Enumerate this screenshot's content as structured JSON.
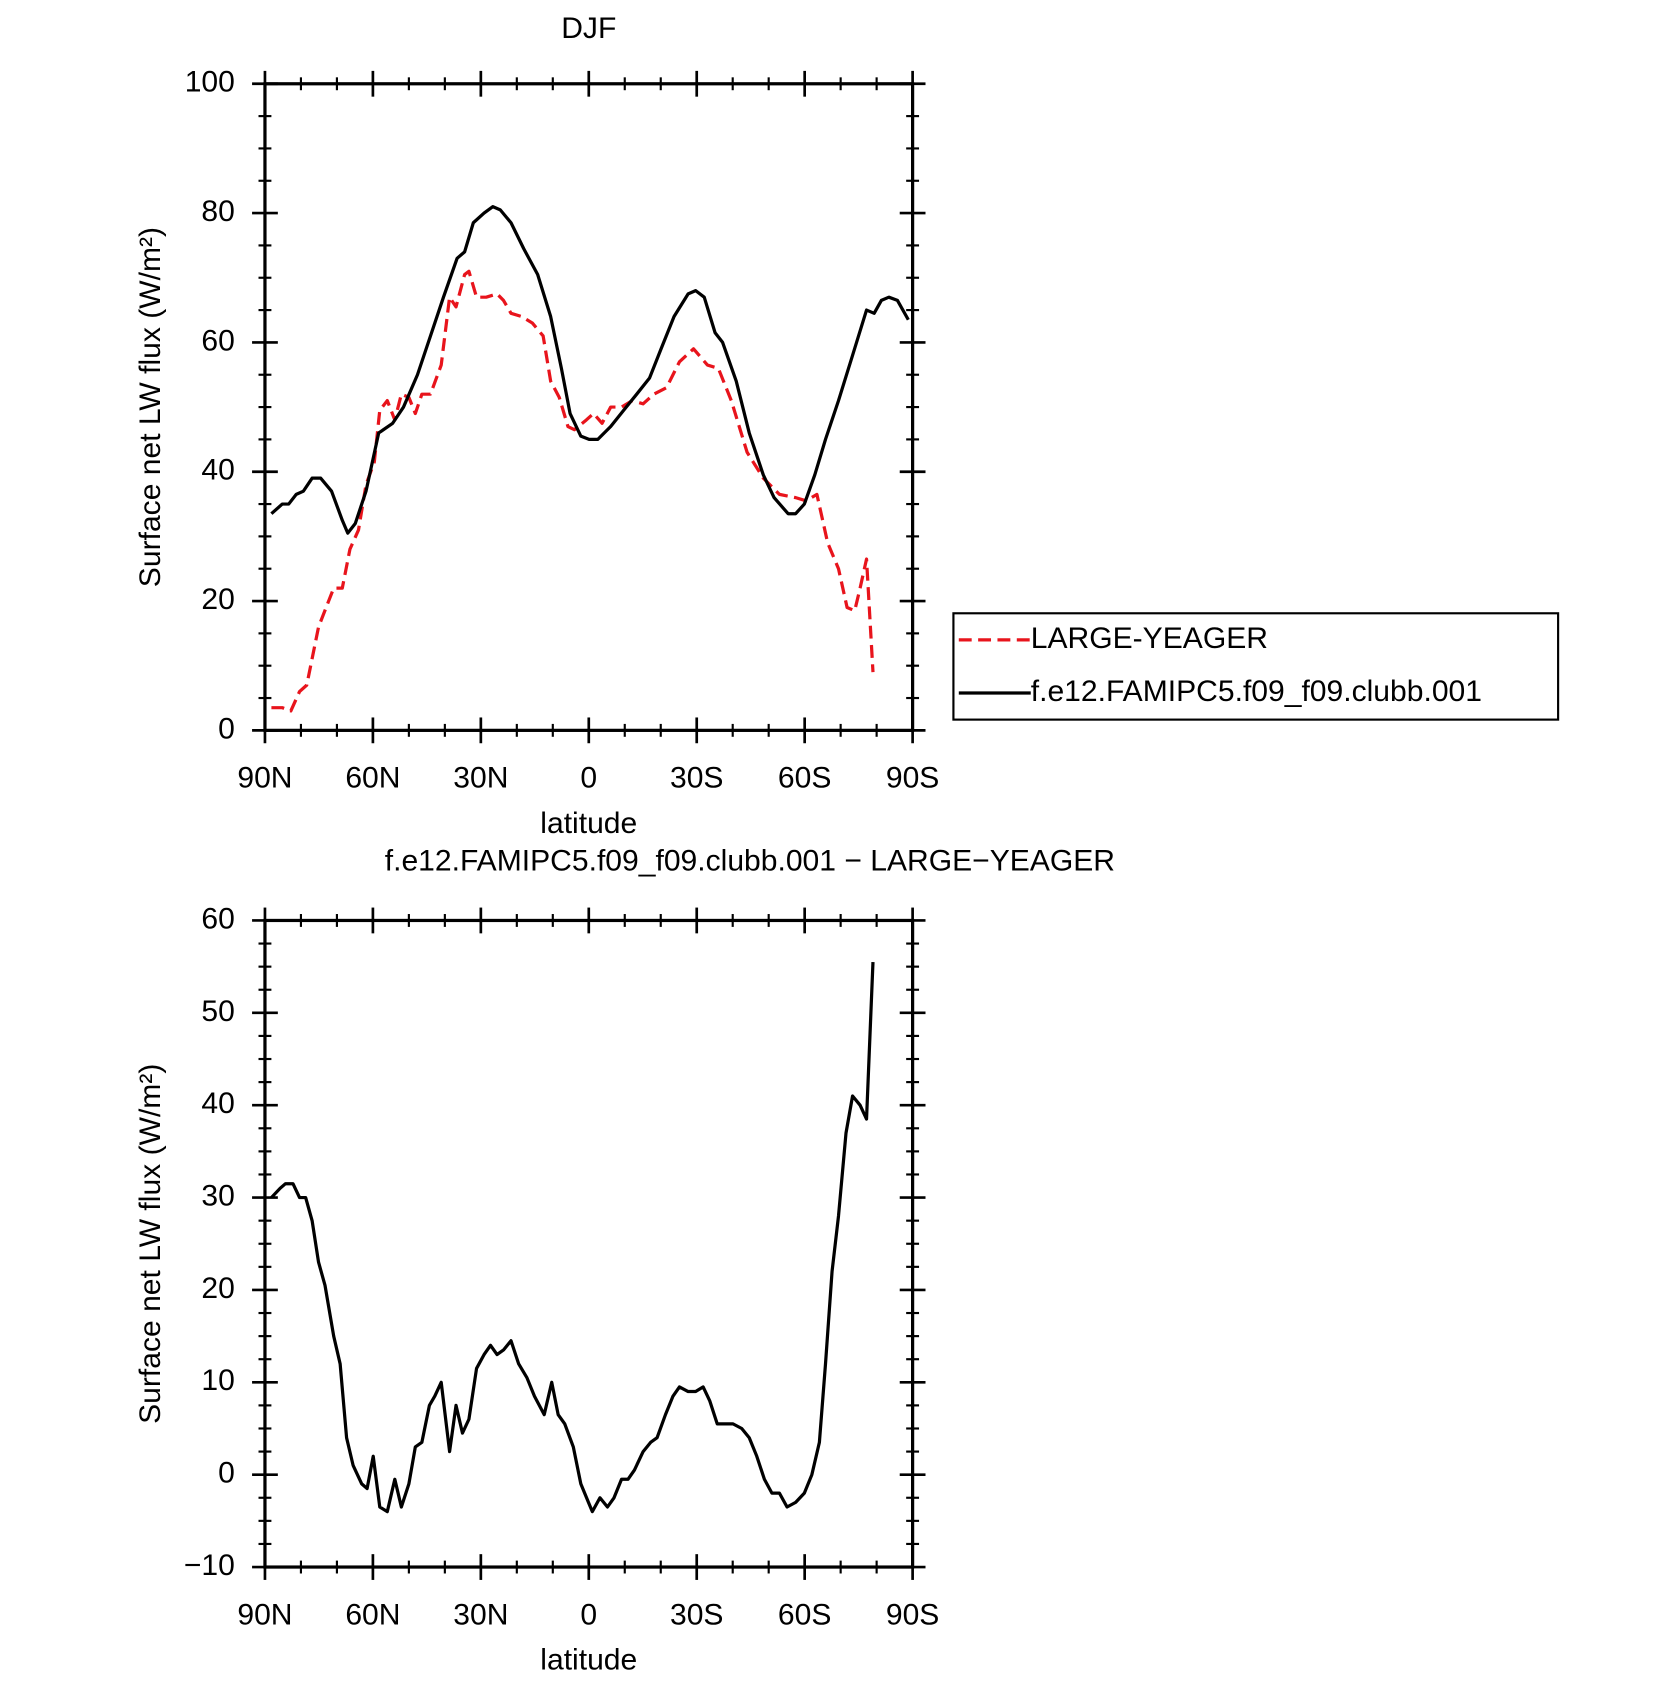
{
  "chart_data": [
    {
      "type": "line",
      "title": "DJF",
      "xlabel": "latitude",
      "ylabel": "Surface net LW flux (W/m²)",
      "xlim": [
        90,
        -90
      ],
      "xticks": [
        {
          "value": 90,
          "label": "90N"
        },
        {
          "value": 60,
          "label": "60N"
        },
        {
          "value": 30,
          "label": "30N"
        },
        0,
        {
          "value": -30,
          "label": "30S"
        },
        {
          "value": -60,
          "label": "60S"
        },
        {
          "value": -90,
          "label": "90S"
        }
      ],
      "ylim": [
        0,
        100
      ],
      "yticks": [
        0,
        20,
        40,
        60,
        80,
        100
      ],
      "legend": "right",
      "series": [
        {
          "name": "LARGE-YEAGER",
          "color": "#e8141c",
          "dash": true,
          "x": [
            88.2,
            85.2,
            82.8,
            80.4,
            78.4,
            75.1,
            70.9,
            68.5,
            66.4,
            64,
            61.9,
            59.6,
            58.1,
            56,
            53.9,
            52.1,
            50,
            48.2,
            46.4,
            44,
            41,
            38.7,
            36.9,
            34.5,
            33.3,
            31.2,
            28.5,
            25.5,
            23.7,
            21.6,
            18.7,
            15.7,
            12.7,
            10.6,
            8.2,
            5.8,
            4,
            0.7,
            -1.3,
            -3.7,
            -6.1,
            -9.1,
            -12.1,
            -15.1,
            -18.1,
            -21.6,
            -25.2,
            -29.1,
            -33,
            -36,
            -39.6,
            -44,
            -48.5,
            -53,
            -57.5,
            -60.4,
            -63.4,
            -66.4,
            -69.4,
            -71.8,
            -73.9,
            -75.4,
            -77.2,
            -79
          ],
          "values": [
            3.5,
            3.5,
            3,
            6,
            7,
            16,
            22,
            22,
            28,
            31,
            38,
            41.5,
            49.5,
            51,
            48,
            52,
            51.5,
            49,
            52,
            52,
            56.5,
            67,
            65.5,
            70.5,
            71,
            67,
            67,
            67.5,
            66.5,
            64.5,
            64,
            63,
            61,
            54,
            51.5,
            47,
            46.5,
            48,
            49,
            47.5,
            50,
            50,
            51,
            50.5,
            52,
            53,
            57,
            59,
            56.5,
            56,
            51,
            43,
            39,
            36.5,
            36,
            35.5,
            36.5,
            29,
            25,
            19,
            18.5,
            22,
            26.5,
            9
          ]
        },
        {
          "name": "f.e12.FAMIPC5.f09_f09.clubb.001",
          "color": "#000000",
          "dash": false,
          "x": [
            88.2,
            85.2,
            83.4,
            81.3,
            79.3,
            76.9,
            74.5,
            71.5,
            68.5,
            67,
            64.9,
            61.9,
            58.4,
            54.5,
            51.5,
            47.6,
            44,
            40.4,
            36.6,
            34.5,
            32.1,
            29.1,
            26.7,
            24.6,
            21.6,
            18.1,
            14.2,
            10.6,
            7.6,
            5.2,
            2.2,
            -0.1,
            -2.5,
            -6.1,
            -9.7,
            -13.3,
            -16.9,
            -20.1,
            -23.7,
            -27.6,
            -29.7,
            -32.1,
            -35.1,
            -37.2,
            -41,
            -44.6,
            -48.5,
            -51.5,
            -55.4,
            -57.5,
            -59.9,
            -62.8,
            -65.8,
            -69.4,
            -73.3,
            -77.2,
            -79.3,
            -81.3,
            -83.4,
            -85.8,
            -88.8
          ],
          "values": [
            33.5,
            35,
            35,
            36.5,
            37,
            39,
            39,
            37,
            32.5,
            30.5,
            32,
            37,
            46,
            47.5,
            50,
            55,
            61,
            67,
            73,
            74,
            78.5,
            80,
            81,
            80.5,
            78.5,
            74.5,
            70.5,
            64,
            56,
            49,
            45.5,
            45,
            45,
            47,
            49.5,
            52,
            54.5,
            59,
            64,
            67.5,
            68,
            67,
            61.5,
            60,
            54,
            46,
            39.5,
            36,
            33.5,
            33.5,
            35,
            39.5,
            45,
            51,
            58,
            65,
            64.5,
            66.5,
            67,
            66.5,
            63.5
          ]
        }
      ]
    },
    {
      "type": "line",
      "title": "f.e12.FAMIPC5.f09_f09.clubb.001 − LARGE−YEAGER",
      "xlabel": "latitude",
      "ylabel": "Surface net LW flux (W/m²)",
      "xlim": [
        90,
        -90
      ],
      "xticks": [
        {
          "value": 90,
          "label": "90N"
        },
        {
          "value": 60,
          "label": "60N"
        },
        {
          "value": 30,
          "label": "30N"
        },
        0,
        {
          "value": -30,
          "label": "30S"
        },
        {
          "value": -60,
          "label": "60S"
        },
        {
          "value": -90,
          "label": "90S"
        }
      ],
      "ylim": [
        -10,
        60
      ],
      "yticks": [
        {
          "value": -10,
          "label": "−10"
        },
        0,
        10,
        20,
        30,
        40,
        50,
        60
      ],
      "series": [
        {
          "color": "#000000",
          "dash": false,
          "x": [
            88.2,
            85.8,
            84.3,
            82.2,
            80.4,
            78.7,
            76.9,
            75.1,
            73.3,
            70.9,
            69.1,
            67.3,
            65.5,
            63.1,
            61.6,
            59.9,
            58.1,
            56,
            53.9,
            52.1,
            50,
            48.2,
            46.4,
            44.3,
            42.8,
            41,
            38.7,
            36.9,
            35.1,
            33.3,
            31.2,
            29.1,
            27.3,
            25.5,
            23.7,
            21.6,
            19.5,
            17.2,
            15.1,
            12.4,
            10.3,
            8.5,
            6.7,
            4.3,
            2.2,
            0.1,
            -1,
            -3.1,
            -5.2,
            -7,
            -9.1,
            -10.9,
            -12.7,
            -15.1,
            -17.2,
            -19,
            -21.3,
            -23.4,
            -25.2,
            -27.6,
            -29.7,
            -31.8,
            -33.6,
            -35.7,
            -38.1,
            -40.1,
            -42.5,
            -44.6,
            -46.7,
            -48.8,
            -50.9,
            -53,
            -55.1,
            -57.5,
            -59.9,
            -62,
            -64.1,
            -65.8,
            -67.6,
            -69.4,
            -71.5,
            -73.3,
            -75.4,
            -77.2,
            -79
          ],
          "values": [
            30,
            31,
            31.5,
            31.5,
            30,
            30,
            27.5,
            23,
            20.5,
            15,
            12,
            4,
            1,
            -1,
            -1.5,
            2,
            -3.5,
            -4,
            -0.5,
            -3.5,
            -1,
            3,
            3.5,
            7.5,
            8.5,
            10,
            2.5,
            7.5,
            4.5,
            6,
            11.5,
            13,
            14,
            13,
            13.5,
            14.5,
            12,
            10.5,
            8.5,
            6.5,
            10,
            6.5,
            5.5,
            3,
            -1,
            -3,
            -4,
            -2.5,
            -3.5,
            -2.5,
            -0.5,
            -0.5,
            0.5,
            2.5,
            3.5,
            4,
            6.5,
            8.5,
            9.5,
            9,
            9,
            9.5,
            8,
            5.5,
            5.5,
            5.5,
            5,
            4,
            2,
            -0.5,
            -2,
            -2,
            -3.5,
            -3,
            -2,
            0,
            3.5,
            12,
            22,
            28,
            37,
            41,
            40,
            38.5,
            55.5
          ]
        }
      ]
    }
  ]
}
